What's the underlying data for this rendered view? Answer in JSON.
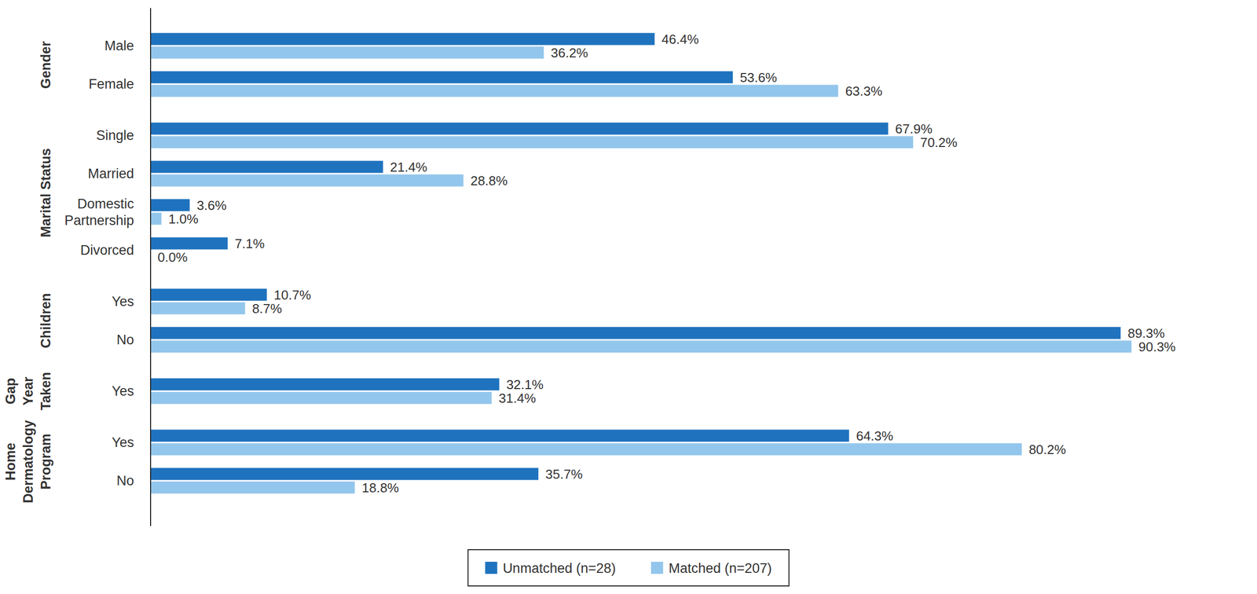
{
  "chart_data": {
    "type": "bar",
    "orientation": "horizontal",
    "groups": [
      {
        "label": "Gender",
        "categories": [
          "Male",
          "Female"
        ]
      },
      {
        "label": "Marital Status",
        "categories": [
          "Single",
          "Married",
          "Domestic Partnership",
          "Divorced"
        ]
      },
      {
        "label": "Children",
        "categories": [
          "Yes",
          "No"
        ]
      },
      {
        "label": "Gap Year Taken",
        "categories": [
          "Yes"
        ]
      },
      {
        "label": "Home Dermatology Program",
        "categories": [
          "Yes",
          "No"
        ]
      }
    ],
    "series": [
      {
        "name": "Unmatched (n=28)",
        "color": "#1f73be",
        "values": [
          46.4,
          53.6,
          67.9,
          21.4,
          3.6,
          7.1,
          10.7,
          89.3,
          32.1,
          64.3,
          35.7
        ],
        "value_labels": [
          "46.4%",
          "53.6%",
          "67.9%",
          "21.4%",
          "3.6%",
          "7.1%",
          "10.7%",
          "89.3%",
          "32.1%",
          "64.3%",
          "35.7%"
        ]
      },
      {
        "name": "Matched (n=207)",
        "color": "#93c6ec",
        "values": [
          36.2,
          63.3,
          70.2,
          28.8,
          1.0,
          0.0,
          8.7,
          90.3,
          31.4,
          80.2,
          18.8
        ],
        "value_labels": [
          "36.2%",
          "63.3%",
          "70.2%",
          "28.8%",
          "1.0%",
          "0.0%",
          "8.7%",
          "90.3%",
          "31.4%",
          "80.2%",
          "18.8%"
        ]
      }
    ],
    "xlim": [
      0,
      100
    ],
    "tick_labels": false,
    "grid": false,
    "data_labels": true,
    "legend": "bottom"
  }
}
